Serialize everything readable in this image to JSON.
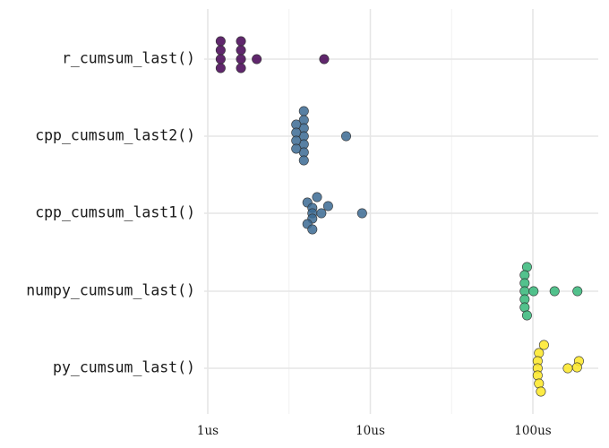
{
  "chart_data": {
    "type": "scatter",
    "subtype": "beeswarm",
    "x_scale": "log10",
    "xlim": [
      0.85,
      240
    ],
    "x_ticks": [
      {
        "value": 1,
        "label": "1us"
      },
      {
        "value": 10,
        "label": "10us"
      },
      {
        "value": 100,
        "label": "100us"
      }
    ],
    "grid": true,
    "legend": "none",
    "categories": [
      "r_cumsum_last()",
      "cpp_cumsum_last2()",
      "cpp_cumsum_last1()",
      "numpy_cumsum_last()",
      "py_cumsum_last()"
    ],
    "series": [
      {
        "category": "r_cumsum_last()",
        "color": "#440154",
        "values": [
          1.2,
          1.2,
          1.2,
          1.2,
          1.6,
          1.6,
          1.6,
          1.6,
          2.0,
          5.2
        ]
      },
      {
        "category": "cpp_cumsum_last2()",
        "color": "#3B6A93",
        "values": [
          3.9,
          3.9,
          3.9,
          3.9,
          3.9,
          3.9,
          3.9,
          3.5,
          3.5,
          3.5,
          3.5,
          7.1
        ]
      },
      {
        "category": "cpp_cumsum_last1()",
        "color": "#3B6A93",
        "values": [
          4.7,
          4.1,
          4.4,
          4.4,
          4.4,
          4.1,
          4.4,
          5.0,
          5.5,
          8.9
        ]
      },
      {
        "category": "numpy_cumsum_last()",
        "color": "#35B779",
        "values": [
          92,
          89,
          89,
          89,
          89,
          89,
          92,
          101,
          136,
          188
        ]
      },
      {
        "category": "py_cumsum_last()",
        "color": "#FDE725",
        "values": [
          117,
          109,
          107,
          107,
          107,
          109,
          112,
          164,
          192,
          187
        ]
      }
    ]
  }
}
